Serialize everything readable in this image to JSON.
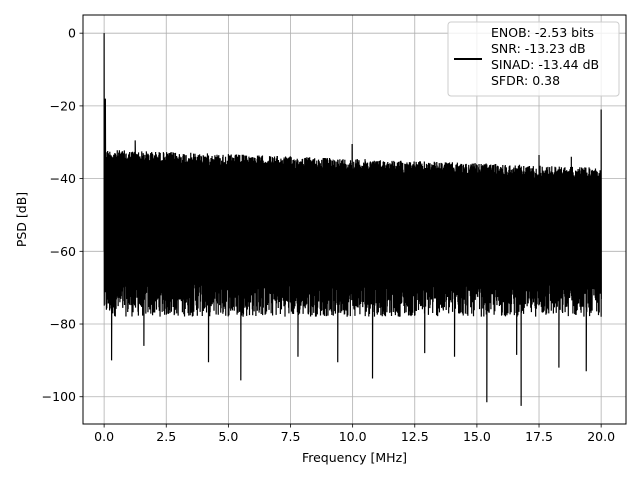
{
  "chart_data": {
    "type": "line",
    "title": "",
    "xlabel": "Frequency [MHz]",
    "ylabel": "PSD [dB]",
    "xlim": [
      -0.85,
      21.0
    ],
    "ylim": [
      -107.5,
      5.0
    ],
    "xticks": [
      0.0,
      2.5,
      5.0,
      7.5,
      10.0,
      12.5,
      15.0,
      17.5,
      20.0
    ],
    "xtick_labels": [
      "0.0",
      "2.5",
      "5.0",
      "7.5",
      "10.0",
      "12.5",
      "15.0",
      "17.5",
      "20.0"
    ],
    "yticks": [
      0,
      -20,
      -40,
      -60,
      -80,
      -100
    ],
    "ytick_labels": [
      "0",
      "−20",
      "−40",
      "−60",
      "−80",
      "−100"
    ],
    "grid": true,
    "legend_position": "top-right",
    "legend_lines": [
      "ENOB: -2.53 bits",
      "SNR: -13.23 dB",
      "SINAD: -13.44 dB",
      "SFDR: 0.38"
    ],
    "series": [
      {
        "color": "#000000",
        "noise_top_start": -32,
        "noise_top_end": -37,
        "noise_floor_typical": -75,
        "x_range": [
          0.0,
          20.0
        ],
        "peaks": [
          {
            "x": 0.0,
            "y": 0.0
          },
          {
            "x": 0.05,
            "y": -18.0
          },
          {
            "x": 9.98,
            "y": -30.5
          },
          {
            "x": 20.0,
            "y": -21.0
          },
          {
            "x": 1.25,
            "y": -29.5
          },
          {
            "x": 17.5,
            "y": -33.5
          },
          {
            "x": 18.8,
            "y": -34.0
          }
        ],
        "dips": [
          {
            "x": 0.3,
            "y": -90.0
          },
          {
            "x": 1.6,
            "y": -86.0
          },
          {
            "x": 4.2,
            "y": -90.5
          },
          {
            "x": 5.5,
            "y": -95.5
          },
          {
            "x": 7.8,
            "y": -89.0
          },
          {
            "x": 9.4,
            "y": -90.5
          },
          {
            "x": 10.8,
            "y": -95.0
          },
          {
            "x": 12.9,
            "y": -88.0
          },
          {
            "x": 14.1,
            "y": -89.0
          },
          {
            "x": 15.4,
            "y": -101.5
          },
          {
            "x": 16.6,
            "y": -88.5
          },
          {
            "x": 16.78,
            "y": -102.5
          },
          {
            "x": 18.3,
            "y": -92.0
          },
          {
            "x": 19.4,
            "y": -93.0
          }
        ]
      }
    ]
  }
}
